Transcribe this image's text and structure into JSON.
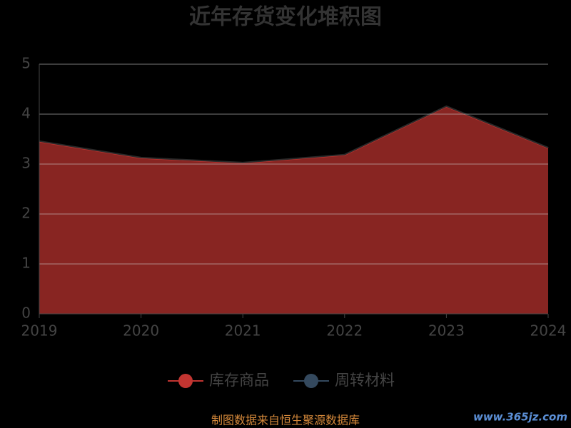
{
  "chart_data": {
    "type": "area",
    "stacked": true,
    "title": "近年存货变化堆积图",
    "x": [
      "2019",
      "2020",
      "2021",
      "2022",
      "2023",
      "2024"
    ],
    "series": [
      {
        "name": "库存商品",
        "color": "#c23531",
        "values": [
          3.45,
          3.12,
          3.02,
          3.18,
          4.15,
          3.32
        ]
      },
      {
        "name": "周转材料",
        "color": "#34495e",
        "values": [
          0.01,
          0.01,
          0.01,
          0.01,
          0.01,
          0.01
        ]
      }
    ],
    "ylim": [
      0,
      5
    ],
    "yticks": [
      0,
      1,
      2,
      3,
      4,
      5
    ],
    "grid": true
  },
  "source": "制图数据来自恒生聚源数据库",
  "watermark": "www.365jz.com"
}
